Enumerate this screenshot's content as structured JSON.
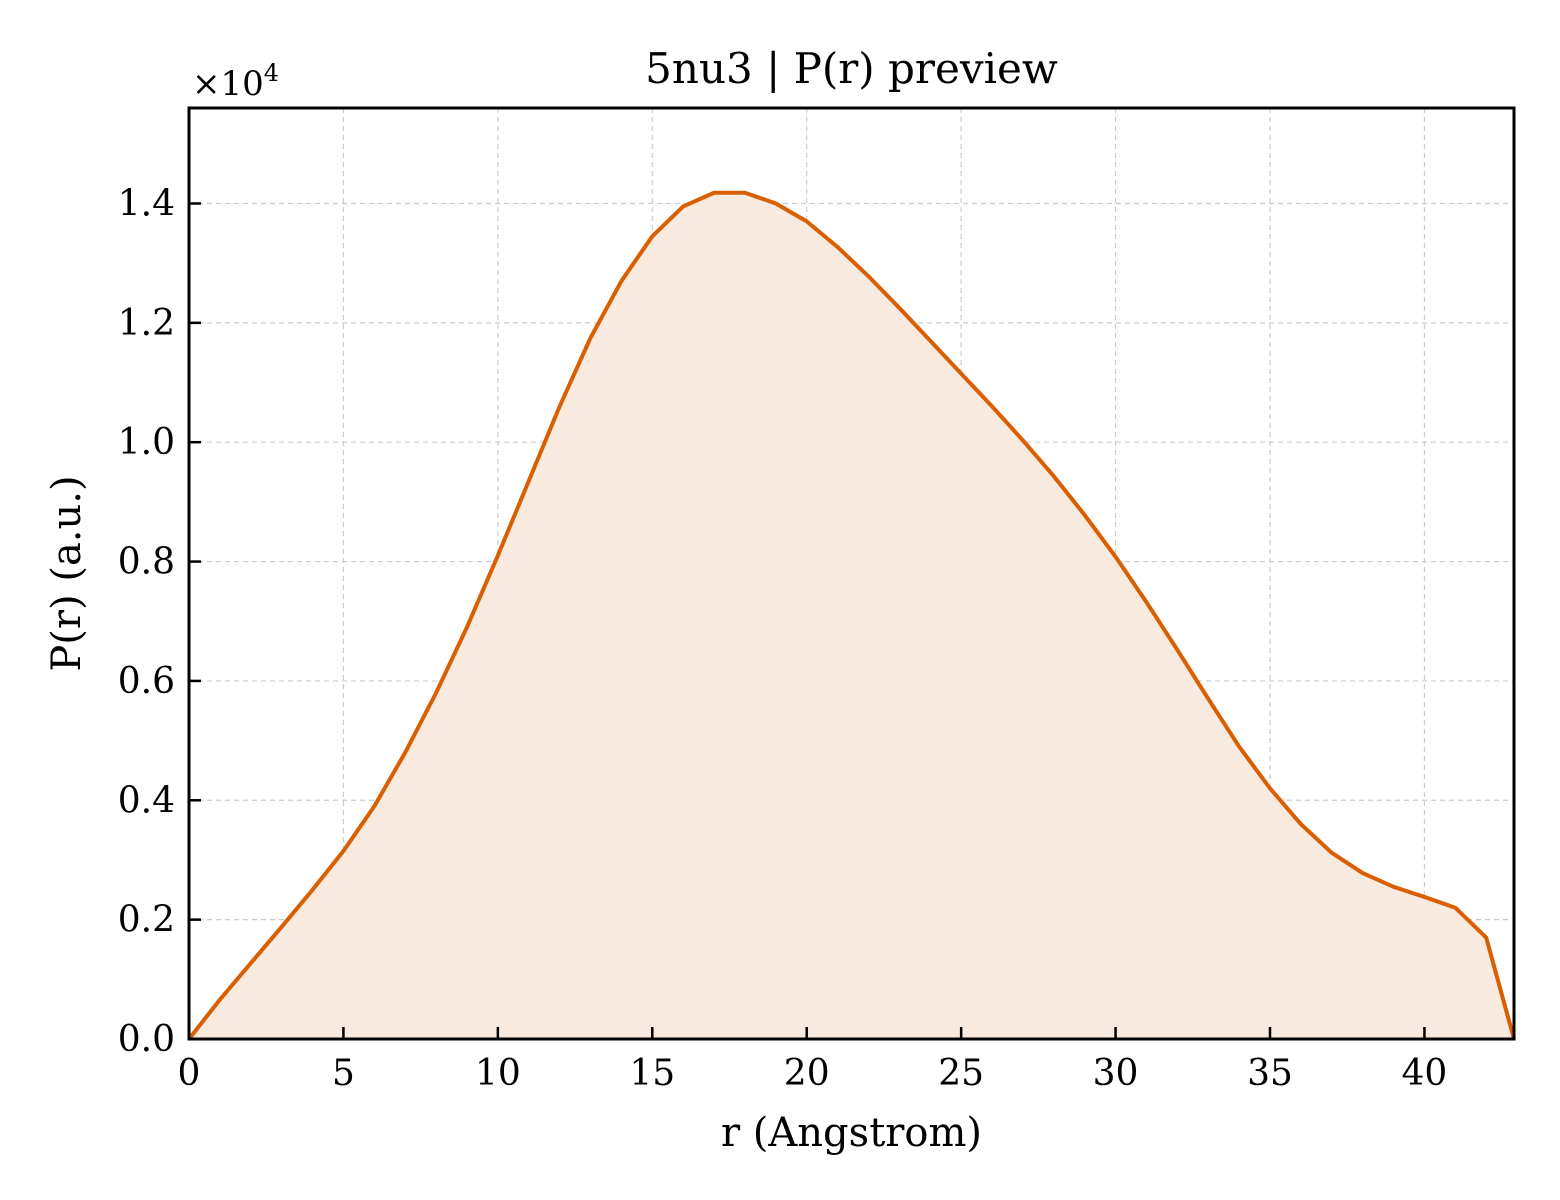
{
  "chart_data": {
    "type": "area",
    "title": "5nu3 | P(r) preview",
    "xlabel": "r (Angstrom)",
    "ylabel": "P(r) (a.u.)",
    "y_multiplier": "×10",
    "y_multiplier_exp": "4",
    "xlim": [
      0,
      42.9
    ],
    "ylim": [
      0,
      1.56
    ],
    "xticks": [
      0,
      5,
      10,
      15,
      20,
      25,
      30,
      35,
      40
    ],
    "xtick_labels": [
      "0",
      "5",
      "10",
      "15",
      "20",
      "25",
      "30",
      "35",
      "40"
    ],
    "yticks": [
      0,
      0.2,
      0.4,
      0.6,
      0.8,
      1.0,
      1.2,
      1.4
    ],
    "ytick_labels": [
      "0.0",
      "0.2",
      "0.4",
      "0.6",
      "0.8",
      "1.0",
      "1.2",
      "1.4"
    ],
    "grid": true,
    "line_color": "#d95f02",
    "fill_color": "#f9eadf",
    "series": [
      {
        "x": [
          0,
          1,
          2,
          3,
          4,
          5,
          6,
          7,
          8,
          9,
          10,
          11,
          12,
          13,
          14,
          15,
          16,
          17,
          18,
          19,
          20,
          21,
          22,
          23,
          24,
          25,
          26,
          27,
          28,
          29,
          30,
          31,
          32,
          33,
          34,
          35,
          36,
          37,
          38,
          39,
          40,
          41,
          42,
          42.9
        ],
        "y": [
          0.0,
          0.066,
          0.127,
          0.188,
          0.25,
          0.315,
          0.39,
          0.48,
          0.58,
          0.69,
          0.81,
          0.935,
          1.06,
          1.175,
          1.27,
          1.345,
          1.395,
          1.418,
          1.418,
          1.4,
          1.37,
          1.327,
          1.278,
          1.225,
          1.17,
          1.115,
          1.06,
          1.003,
          0.943,
          0.878,
          0.808,
          0.732,
          0.652,
          0.57,
          0.49,
          0.42,
          0.36,
          0.312,
          0.278,
          0.255,
          0.238,
          0.22,
          0.17,
          0.0
        ]
      }
    ]
  }
}
